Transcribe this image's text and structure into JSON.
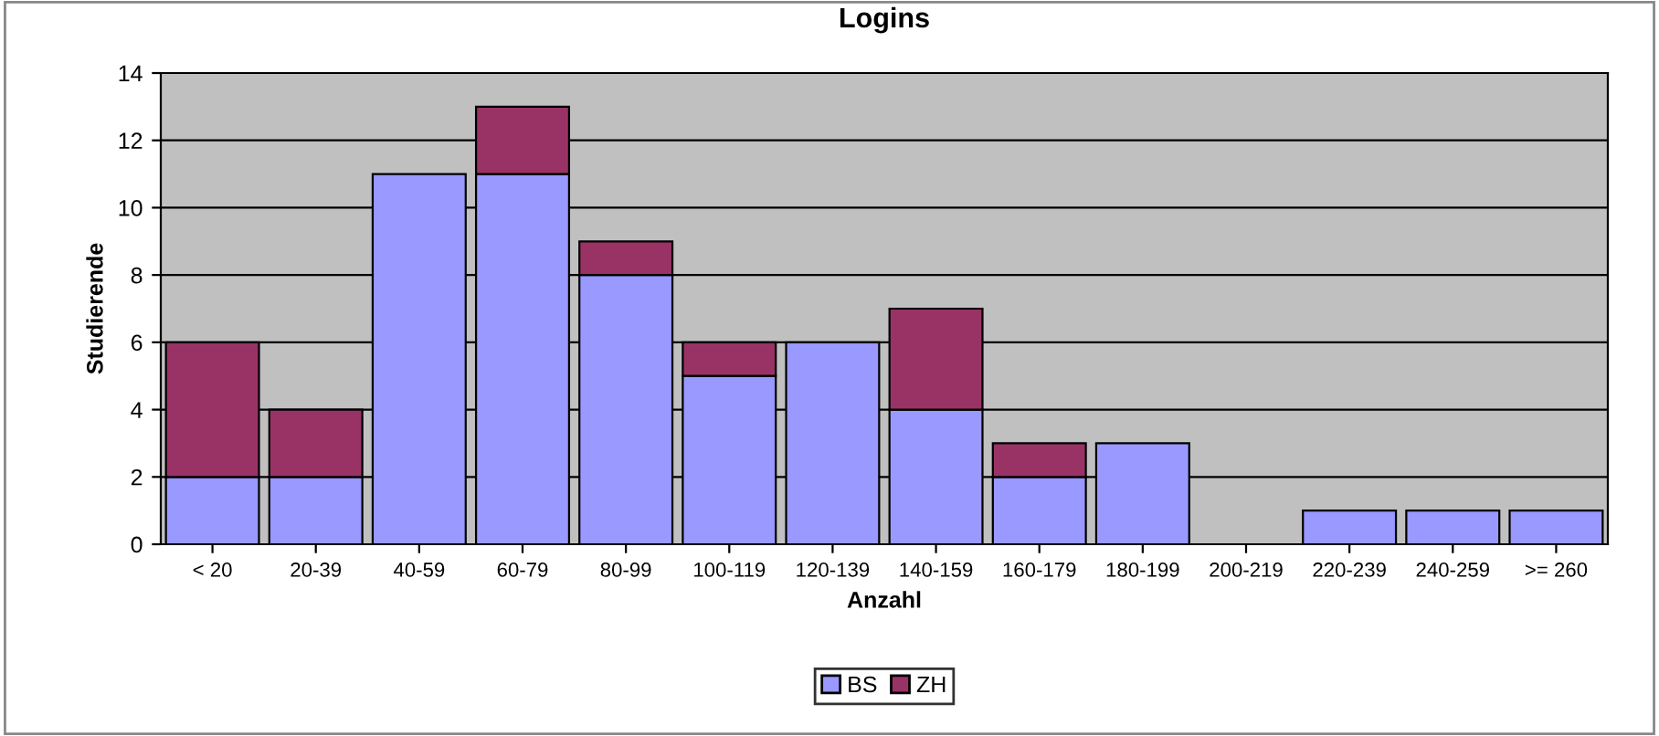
{
  "chart_data": {
    "type": "bar",
    "title": "Logins",
    "xlabel": "Anzahl",
    "ylabel": "Studierende",
    "stacked": true,
    "categories": [
      "< 20",
      "20-39",
      "40-59",
      "60-79",
      "80-99",
      "100-119",
      "120-139",
      "140-159",
      "160-179",
      "180-199",
      "200-219",
      "220-239",
      "240-259",
      ">= 260"
    ],
    "series": [
      {
        "name": "BS",
        "color": "#9999ff",
        "values": [
          2,
          2,
          11,
          11,
          8,
          5,
          6,
          4,
          2,
          3,
          0,
          1,
          1,
          1
        ]
      },
      {
        "name": "ZH",
        "color": "#993366",
        "values": [
          4,
          2,
          0,
          2,
          1,
          1,
          0,
          3,
          1,
          0,
          0,
          0,
          0,
          0
        ]
      }
    ],
    "ylim": [
      0,
      14
    ],
    "yticks": [
      0,
      2,
      4,
      6,
      8,
      10,
      12,
      14
    ],
    "grid": "y",
    "legend": "bottom"
  }
}
